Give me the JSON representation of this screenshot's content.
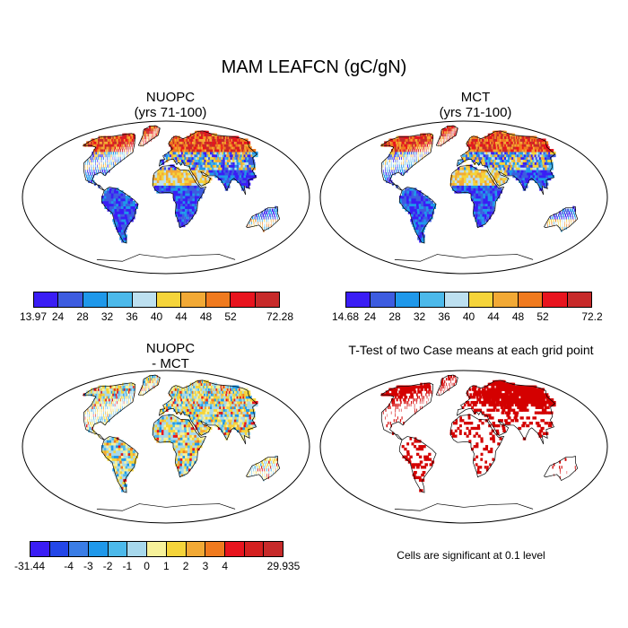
{
  "title": "MAM LEAFCN (gC/gN)",
  "panels": {
    "nuopc": {
      "title_line1": "NUOPC",
      "title_line2": "(yrs 71-100)"
    },
    "mct": {
      "title_line1": "MCT",
      "title_line2": "(yrs 71-100)"
    },
    "diff": {
      "title_line1": "NUOPC",
      "title_line2": "- MCT"
    },
    "ttest": {
      "title": "T-Test of two Case means at each grid point"
    }
  },
  "colorbars": {
    "nuopc": {
      "colors": [
        "#3a1df5",
        "#3d5ce0",
        "#1f98ea",
        "#4cb9ea",
        "#bde0f0",
        "#f5d43a",
        "#f2a935",
        "#f07a1e",
        "#e8141e",
        "#c72a2a"
      ],
      "labels": [
        "13.97",
        "24",
        "28",
        "32",
        "36",
        "40",
        "44",
        "48",
        "52",
        "72.28"
      ]
    },
    "mct": {
      "colors": [
        "#3a1df5",
        "#3d5ce0",
        "#1f98ea",
        "#4cb9ea",
        "#bde0f0",
        "#f5d43a",
        "#f2a935",
        "#f07a1e",
        "#e8141e",
        "#c72a2a"
      ],
      "labels": [
        "14.68",
        "24",
        "28",
        "32",
        "36",
        "40",
        "44",
        "48",
        "52",
        "72.2"
      ]
    },
    "diff": {
      "colors": [
        "#3a1df5",
        "#2346e8",
        "#3a7de6",
        "#1f98ea",
        "#4cb9ea",
        "#a7d8ec",
        "#f6f19a",
        "#f5d43a",
        "#f2a935",
        "#f07a1e",
        "#e8141e",
        "#d42020",
        "#c72a2a"
      ],
      "labels": [
        "-31.44",
        "-4",
        "-3",
        "-2",
        "-1",
        "0",
        "1",
        "2",
        "3",
        "4",
        "29.935"
      ]
    }
  },
  "significance_note": "Cells are significant at 0.1 level",
  "colors": {
    "significant": "#d40000",
    "coastline": "#000000"
  }
}
